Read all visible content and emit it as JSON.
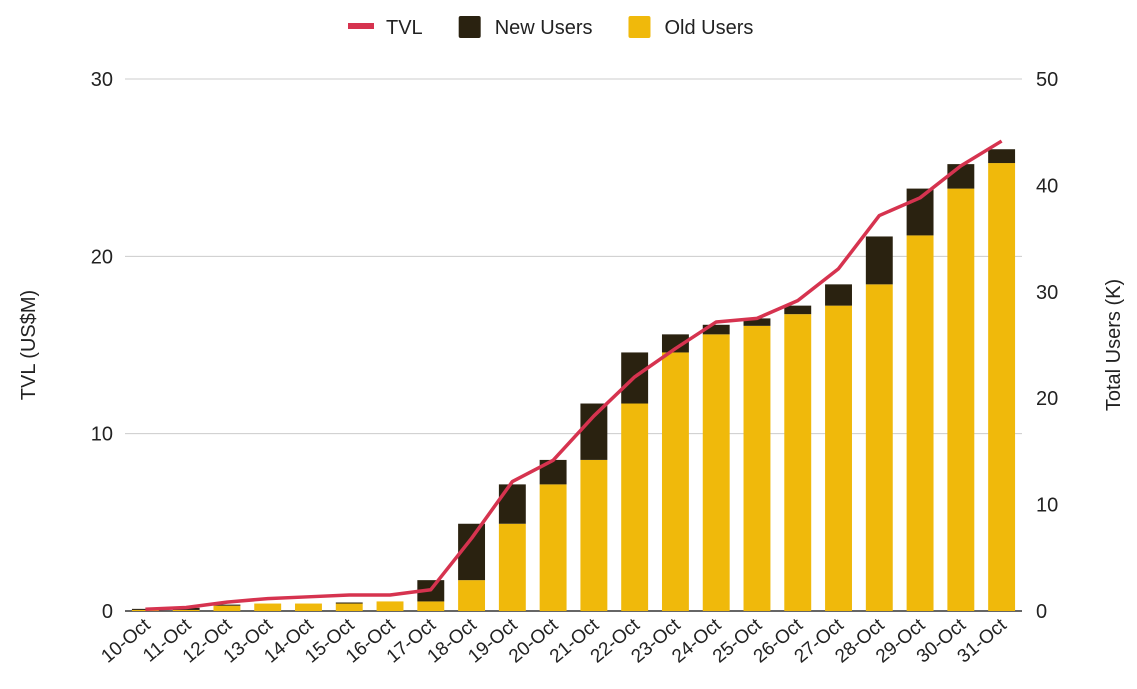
{
  "chart_data": {
    "type": "bar_line",
    "categories": [
      "10-Oct",
      "11-Oct",
      "12-Oct",
      "13-Oct",
      "14-Oct",
      "15-Oct",
      "16-Oct",
      "17-Oct",
      "18-Oct",
      "19-Oct",
      "20-Oct",
      "21-Oct",
      "22-Oct",
      "23-Oct",
      "24-Oct",
      "25-Oct",
      "26-Oct",
      "27-Oct",
      "28-Oct",
      "29-Oct",
      "30-Oct",
      "31-Oct"
    ],
    "series": [
      {
        "name": "TVL",
        "color": "#d6334f",
        "kind": "line",
        "axis": "y",
        "values": [
          0.1,
          0.2,
          0.5,
          0.7,
          0.8,
          0.9,
          0.9,
          1.2,
          4.1,
          7.3,
          8.5,
          11.0,
          13.2,
          14.8,
          16.3,
          16.5,
          17.5,
          19.3,
          22.3,
          23.3,
          25.1,
          26.5
        ]
      },
      {
        "name": "New Users",
        "color": "#2a2210",
        "kind": "bar",
        "axis": "y2",
        "values": [
          0.1,
          0.2,
          0.1,
          0,
          0,
          0.1,
          0,
          2.0,
          5.3,
          3.7,
          2.3,
          5.3,
          4.8,
          1.7,
          0.9,
          0.7,
          0.8,
          2.0,
          4.5,
          4.4,
          2.3,
          1.3
        ]
      },
      {
        "name": "Old Users",
        "color": "#f0b90b",
        "kind": "bar",
        "axis": "y2",
        "values": [
          0.1,
          0.1,
          0.5,
          0.7,
          0.7,
          0.7,
          0.9,
          0.9,
          2.9,
          8.2,
          11.9,
          14.2,
          19.5,
          24.3,
          26.0,
          26.8,
          27.9,
          28.7,
          30.7,
          35.3,
          39.7,
          42.1
        ]
      }
    ],
    "ylabel": "TVL (US$M)",
    "y2label": "Total Users (K)",
    "ylim": [
      0,
      30
    ],
    "yticks": [
      0,
      10,
      20,
      30
    ],
    "y2lim": [
      0,
      50
    ],
    "y2ticks": [
      0,
      10,
      20,
      30,
      40,
      50
    ],
    "grid": true,
    "legend": "top"
  }
}
